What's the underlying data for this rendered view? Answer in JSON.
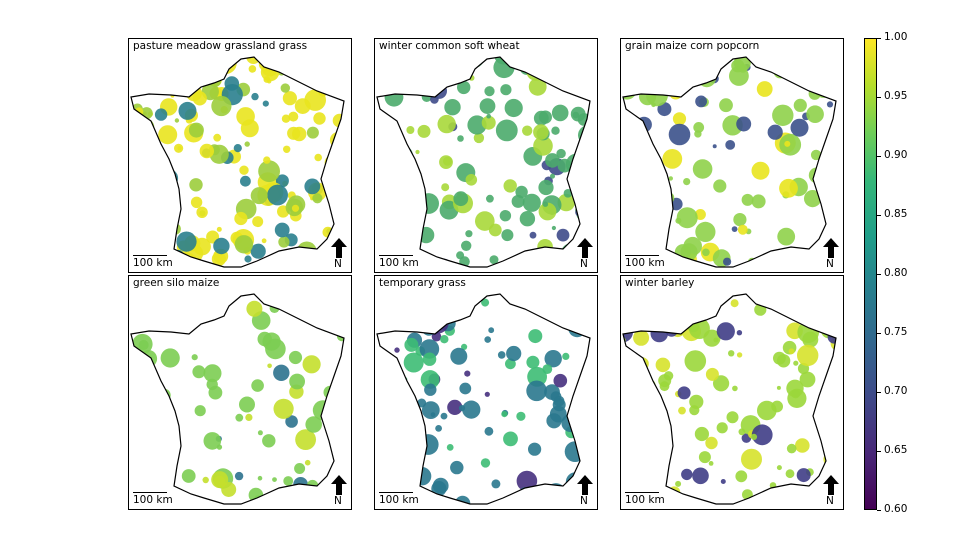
{
  "panels": [
    {
      "title": "pasture meadow grassland grass",
      "scale_label": "100 km",
      "north_label": "N",
      "fill": "#e9e41e",
      "accent1": "#9ccd3c",
      "accent2": "#2a7f8e",
      "coverage": 0.92
    },
    {
      "title": "winter common soft wheat",
      "scale_label": "100 km",
      "north_label": "N",
      "fill": "#4bab6c",
      "accent1": "#a8d83a",
      "accent2": "#3e4a89",
      "coverage": 0.55
    },
    {
      "title": "grain maize corn popcorn",
      "scale_label": "100 km",
      "north_label": "N",
      "fill": "#8fd14a",
      "accent1": "#e9e41e",
      "accent2": "#3b518b",
      "coverage": 0.45
    },
    {
      "title": "green silo maize",
      "scale_label": "100 km",
      "north_label": "N",
      "fill": "#7ccd52",
      "accent1": "#c4df2c",
      "accent2": "#2c728e",
      "coverage": 0.4
    },
    {
      "title": "temporary grass",
      "scale_label": "100 km",
      "north_label": "N",
      "fill": "#2a788e",
      "accent1": "#3dbc74",
      "accent2": "#46307e",
      "coverage": 0.5
    },
    {
      "title": "winter barley",
      "scale_label": "100 km",
      "north_label": "N",
      "fill": "#9bd73b",
      "accent1": "#d6e22b",
      "accent2": "#3f3d86",
      "coverage": 0.5
    }
  ],
  "colorbar": {
    "colormap": "viridis",
    "min": 0.6,
    "max": 1.0,
    "ticks": [
      "0.60",
      "0.65",
      "0.70",
      "0.75",
      "0.80",
      "0.85",
      "0.90",
      "0.95",
      "1.00"
    ]
  }
}
